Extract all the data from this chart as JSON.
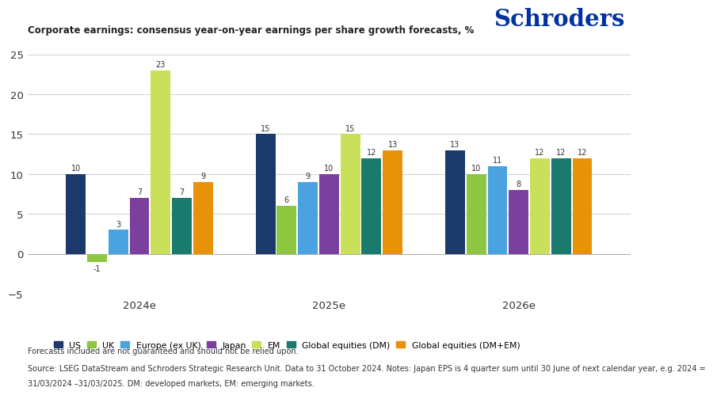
{
  "title": "Corporate earnings: consensus year-on-year earnings per share growth forecasts, %",
  "groups": [
    "2024e",
    "2025e",
    "2026e"
  ],
  "series": [
    {
      "name": "US",
      "color": "#1b3a6b",
      "values": [
        10,
        15,
        13
      ]
    },
    {
      "name": "UK",
      "color": "#8dc63f",
      "values": [
        -1,
        6,
        10
      ]
    },
    {
      "name": "Europe (ex UK)",
      "color": "#4aa3df",
      "values": [
        3,
        9,
        11
      ]
    },
    {
      "name": "Japan",
      "color": "#7b3f9e",
      "values": [
        7,
        10,
        8
      ]
    },
    {
      "name": "EM",
      "color": "#c8e05a",
      "values": [
        23,
        15,
        12
      ]
    },
    {
      "name": "Global equities (DM)",
      "color": "#1b7a6e",
      "values": [
        7,
        12,
        12
      ]
    },
    {
      "name": "Global equities (DM+EM)",
      "color": "#e8920a",
      "values": [
        9,
        13,
        12
      ]
    }
  ],
  "ylim": [
    -5,
    25
  ],
  "yticks": [
    -5,
    0,
    5,
    10,
    15,
    20,
    25
  ],
  "disclaimer": "Forecasts included are not guaranteed and should not be relied upon.",
  "source_line1": "Source: LSEG DataStream and Schroders Strategic Research Unit. Data to 31 October 2024. Notes: Japan EPS is 4 quarter sum until 30 June of next calendar year, e.g. 2024 =",
  "source_line2": "31/03/2024 –31/03/2025. DM: developed markets, EM: emerging markets.",
  "schroders_color": "#0033a0",
  "background_color": "#ffffff",
  "bar_width": 0.095,
  "group_centers": [
    0.3,
    1.15,
    2.0
  ]
}
